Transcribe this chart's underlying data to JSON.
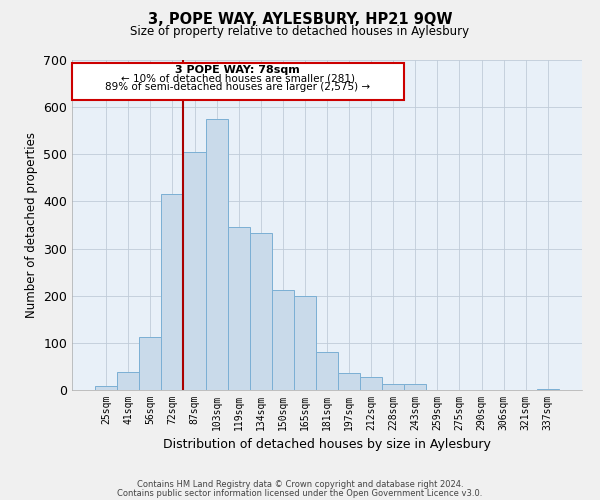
{
  "title": "3, POPE WAY, AYLESBURY, HP21 9QW",
  "subtitle": "Size of property relative to detached houses in Aylesbury",
  "xlabel": "Distribution of detached houses by size in Aylesbury",
  "ylabel": "Number of detached properties",
  "categories": [
    "25sqm",
    "41sqm",
    "56sqm",
    "72sqm",
    "87sqm",
    "103sqm",
    "119sqm",
    "134sqm",
    "150sqm",
    "165sqm",
    "181sqm",
    "197sqm",
    "212sqm",
    "228sqm",
    "243sqm",
    "259sqm",
    "275sqm",
    "290sqm",
    "306sqm",
    "321sqm",
    "337sqm"
  ],
  "values": [
    8,
    38,
    113,
    415,
    505,
    575,
    345,
    333,
    213,
    200,
    80,
    37,
    27,
    12,
    13,
    0,
    0,
    0,
    0,
    0,
    2
  ],
  "bar_color": "#c9daea",
  "bar_edge_color": "#7bafd4",
  "vline_color": "#aa0000",
  "annotation_title": "3 POPE WAY: 78sqm",
  "annotation_line1": "← 10% of detached houses are smaller (281)",
  "annotation_line2": "89% of semi-detached houses are larger (2,575) →",
  "annotation_box_edge": "#cc0000",
  "ylim": [
    0,
    700
  ],
  "yticks": [
    0,
    100,
    200,
    300,
    400,
    500,
    600,
    700
  ],
  "footer1": "Contains HM Land Registry data © Crown copyright and database right 2024.",
  "footer2": "Contains public sector information licensed under the Open Government Licence v3.0.",
  "plot_bg_color": "#e8f0f8",
  "fig_bg_color": "#f0f0f0"
}
